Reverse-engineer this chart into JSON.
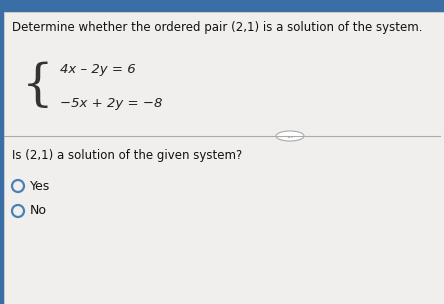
{
  "bg_top": "#3a6ea5",
  "bg_main": "#d8d8d8",
  "bg_white": "#f0efed",
  "title": "Determine whether the ordered pair (2,1) is a solution of the system.",
  "eq1": "4x – 2y = 6",
  "eq2": "−5x + 2y = −8",
  "divider_label": "...",
  "question": "Is (2,1) a solution of the given system?",
  "option1": "Yes",
  "option2": "No",
  "title_fontsize": 8.5,
  "eq_fontsize": 9.5,
  "question_fontsize": 8.5,
  "option_fontsize": 9.0,
  "brace_fontsize": 36
}
